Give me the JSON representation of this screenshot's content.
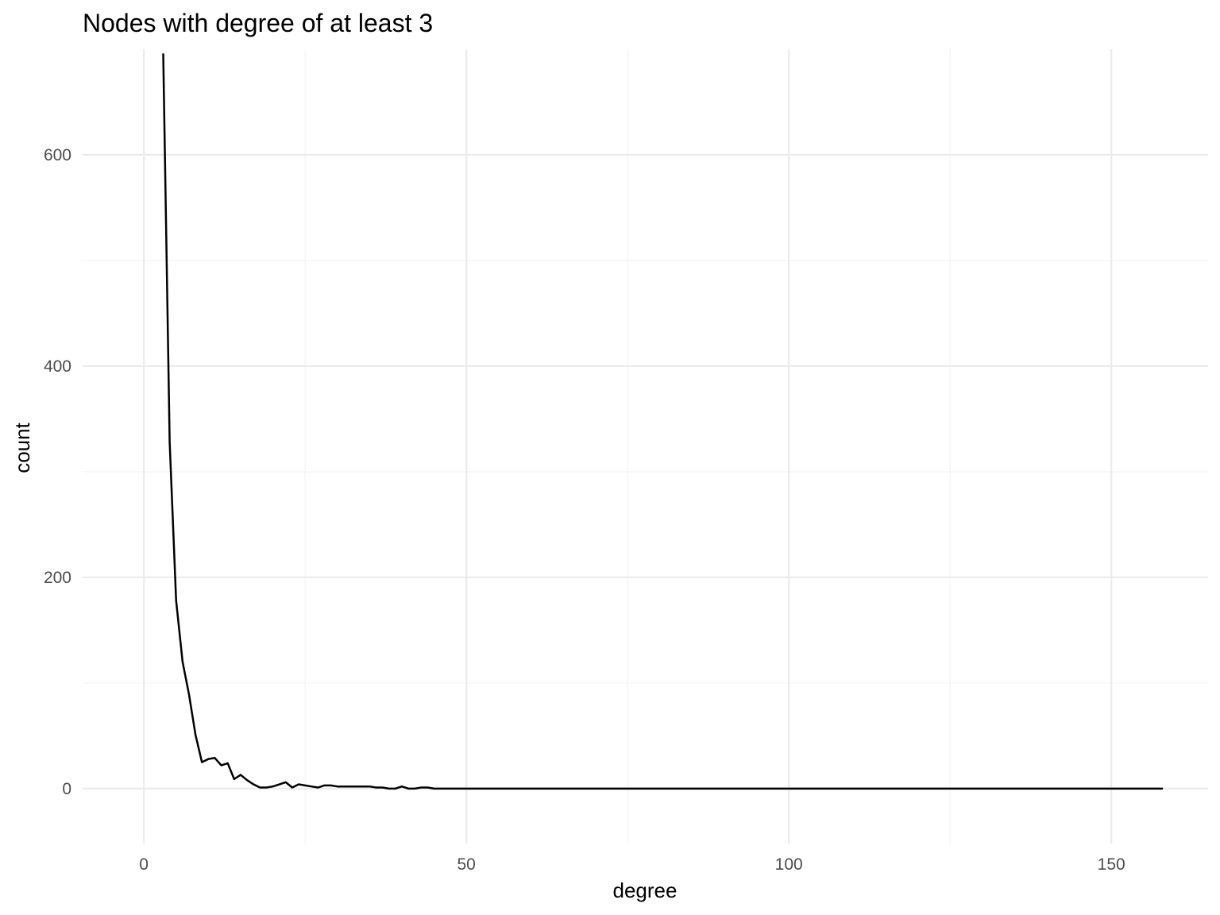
{
  "chart_data": {
    "type": "line",
    "title": "Nodes with degree of at least 3",
    "xlabel": "degree",
    "ylabel": "count",
    "xlim": [
      -9.5,
      165
    ],
    "ylim": [
      -52,
      700
    ],
    "x_ticks": [
      0,
      50,
      100,
      150
    ],
    "x_minor_ticks": [
      25,
      75,
      125
    ],
    "y_ticks": [
      0,
      200,
      400,
      600
    ],
    "y_minor_ticks": [
      100,
      300,
      500
    ],
    "grid": true,
    "legend": "none",
    "series": [
      {
        "color": "#000000",
        "x": [
          3,
          4,
          5,
          6,
          7,
          8,
          9,
          10,
          11,
          12,
          13,
          14,
          15,
          16,
          17,
          18,
          19,
          20,
          21,
          22,
          23,
          24,
          25,
          26,
          27,
          28,
          29,
          30,
          31,
          32,
          33,
          34,
          35,
          36,
          37,
          38,
          39,
          40,
          41,
          42,
          43,
          44,
          45,
          46,
          47,
          48,
          49,
          50,
          60,
          70,
          80,
          90,
          100,
          110,
          120,
          130,
          140,
          150,
          158
        ],
        "y": [
          696,
          328,
          178,
          120,
          89,
          51,
          25,
          28,
          29,
          22,
          24,
          9,
          13,
          8,
          4,
          1,
          1,
          2,
          4,
          6,
          1,
          4,
          3,
          2,
          1,
          3,
          3,
          2,
          2,
          2,
          2,
          2,
          2,
          1,
          1,
          0,
          0,
          2,
          0,
          0,
          1,
          1,
          0,
          0,
          0,
          0,
          0,
          0,
          0,
          0,
          0,
          0,
          0,
          0,
          0,
          0,
          0,
          0,
          0
        ]
      }
    ]
  }
}
